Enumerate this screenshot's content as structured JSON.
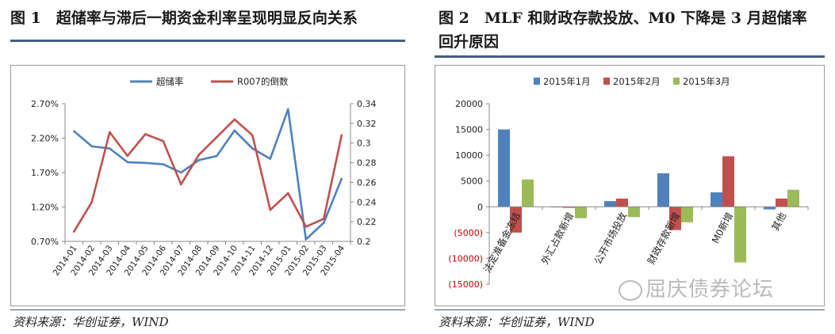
{
  "figure1": {
    "title": "图 1　超储率与滞后一期资金利率呈现明显反向关系",
    "source": "资料来源：华创证券，WIND",
    "colors": {
      "series1": "#4f81bd",
      "series2": "#c0504d"
    }
  },
  "figure2": {
    "title_line1": "图 2　MLF 和财政存款投放、M0 下降是 3 月超储率",
    "title_line2": "回升原因",
    "source": "资料来源：华创证券，WIND",
    "colors": {
      "jan": "#4f81bd",
      "feb": "#c0504d",
      "mar": "#9bbb59"
    }
  },
  "watermark": "屈庆债券论坛",
  "chart_data": [
    {
      "type": "line",
      "x": [
        "2014-01",
        "2014-02",
        "2014-03",
        "2014-04",
        "2014-05",
        "2014-06",
        "2014-07",
        "2014-08",
        "2014-09",
        "2014-10",
        "2014-11",
        "2014-12",
        "2015-01",
        "2015-02",
        "2015-03",
        "2015-04"
      ],
      "series": [
        {
          "name": "超储率",
          "axis": "left",
          "values": [
            2.3,
            2.08,
            2.05,
            1.85,
            1.84,
            1.82,
            1.7,
            1.88,
            1.94,
            2.31,
            2.05,
            1.9,
            2.62,
            0.73,
            0.97,
            1.61
          ]
        },
        {
          "name": "R007的倒数",
          "axis": "right",
          "values": [
            0.21,
            0.24,
            0.311,
            0.287,
            0.309,
            0.302,
            0.258,
            0.288,
            0.306,
            0.324,
            0.308,
            0.232,
            0.249,
            0.215,
            0.223,
            0.308
          ]
        }
      ],
      "yleft": {
        "ylim": [
          0.7,
          2.7
        ],
        "ticks": [
          "0.70%",
          "1.20%",
          "1.70%",
          "2.20%",
          "2.70%"
        ],
        "tick_values": [
          0.7,
          1.2,
          1.7,
          2.2,
          2.7
        ]
      },
      "yright": {
        "ylim": [
          0.2,
          0.34
        ],
        "ticks": [
          "0.2",
          "0.22",
          "0.24",
          "0.26",
          "0.28",
          "0.3",
          "0.32",
          "0.34"
        ],
        "tick_values": [
          0.2,
          0.22,
          0.24,
          0.26,
          0.28,
          0.3,
          0.32,
          0.34
        ]
      },
      "legend": "top-center",
      "grid": false
    },
    {
      "type": "bar",
      "categories": [
        "法定准备金冻结",
        "外汇占款新增",
        "公开市场投放",
        "财政存款新增",
        "M0新增",
        "其他"
      ],
      "series": [
        {
          "name": "2015年1月",
          "values": [
            15000,
            0,
            1100,
            6500,
            2800,
            -500
          ]
        },
        {
          "name": "2015年2月",
          "values": [
            -5000,
            -200,
            1600,
            -4500,
            9800,
            1600
          ]
        },
        {
          "name": "2015年3月",
          "values": [
            5300,
            -2200,
            -2000,
            -3000,
            -10800,
            3300
          ]
        }
      ],
      "ylim": [
        -15000,
        20000
      ],
      "yticks": [
        "(15000)",
        "(10000)",
        "(5000)",
        "0",
        "5000",
        "10000",
        "15000",
        "20000"
      ],
      "ytick_values": [
        -15000,
        -10000,
        -5000,
        0,
        5000,
        10000,
        15000,
        20000
      ],
      "legend": "top-center",
      "grid": false
    }
  ]
}
